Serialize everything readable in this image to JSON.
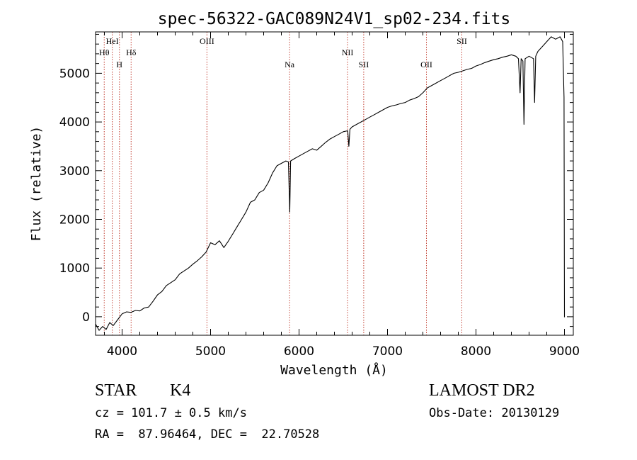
{
  "title": "spec-56322-GAC089N24V1_sp02-234.fits",
  "chart_data": {
    "type": "line",
    "title": "spec-56322-GAC089N24V1_sp02-234.fits",
    "xlabel": "Wavelength (Å)",
    "ylabel": "Flux (relative)",
    "xlim": [
      3700,
      9100
    ],
    "ylim": [
      -380,
      5850
    ],
    "x_ticks": [
      4000,
      5000,
      6000,
      7000,
      8000,
      9000
    ],
    "y_ticks": [
      0,
      1000,
      2000,
      3000,
      4000,
      5000
    ],
    "x_tick_labels": [
      "4000",
      "5000",
      "6000",
      "7000",
      "8000",
      "9000"
    ],
    "y_tick_labels": [
      "0",
      "1000",
      "2000",
      "3000",
      "4000",
      "5000"
    ],
    "grid": false,
    "line_color": "#000000",
    "series": [
      {
        "points": [
          [
            3700,
            -150
          ],
          [
            3740,
            -280
          ],
          [
            3780,
            -200
          ],
          [
            3820,
            -260
          ],
          [
            3860,
            -120
          ],
          [
            3900,
            -180
          ],
          [
            3950,
            -60
          ],
          [
            4000,
            60
          ],
          [
            4050,
            100
          ],
          [
            4100,
            90
          ],
          [
            4150,
            130
          ],
          [
            4200,
            120
          ],
          [
            4250,
            180
          ],
          [
            4300,
            200
          ],
          [
            4350,
            320
          ],
          [
            4400,
            450
          ],
          [
            4450,
            520
          ],
          [
            4500,
            640
          ],
          [
            4550,
            700
          ],
          [
            4600,
            760
          ],
          [
            4650,
            880
          ],
          [
            4700,
            940
          ],
          [
            4750,
            1000
          ],
          [
            4800,
            1080
          ],
          [
            4850,
            1150
          ],
          [
            4900,
            1230
          ],
          [
            4950,
            1330
          ],
          [
            5000,
            1520
          ],
          [
            5050,
            1480
          ],
          [
            5100,
            1560
          ],
          [
            5150,
            1420
          ],
          [
            5200,
            1550
          ],
          [
            5250,
            1700
          ],
          [
            5300,
            1850
          ],
          [
            5350,
            2000
          ],
          [
            5400,
            2150
          ],
          [
            5450,
            2350
          ],
          [
            5500,
            2400
          ],
          [
            5550,
            2550
          ],
          [
            5600,
            2600
          ],
          [
            5650,
            2750
          ],
          [
            5700,
            2950
          ],
          [
            5750,
            3100
          ],
          [
            5800,
            3150
          ],
          [
            5850,
            3200
          ],
          [
            5880,
            3180
          ],
          [
            5895,
            2150
          ],
          [
            5905,
            3200
          ],
          [
            5950,
            3250
          ],
          [
            6000,
            3300
          ],
          [
            6050,
            3350
          ],
          [
            6100,
            3400
          ],
          [
            6150,
            3450
          ],
          [
            6200,
            3420
          ],
          [
            6250,
            3500
          ],
          [
            6300,
            3580
          ],
          [
            6350,
            3650
          ],
          [
            6400,
            3700
          ],
          [
            6450,
            3750
          ],
          [
            6500,
            3800
          ],
          [
            6550,
            3820
          ],
          [
            6563,
            3500
          ],
          [
            6575,
            3850
          ],
          [
            6600,
            3900
          ],
          [
            6650,
            3950
          ],
          [
            6700,
            4000
          ],
          [
            6750,
            4050
          ],
          [
            6800,
            4100
          ],
          [
            6850,
            4150
          ],
          [
            6900,
            4200
          ],
          [
            6950,
            4250
          ],
          [
            7000,
            4300
          ],
          [
            7050,
            4330
          ],
          [
            7100,
            4350
          ],
          [
            7150,
            4380
          ],
          [
            7200,
            4400
          ],
          [
            7250,
            4450
          ],
          [
            7300,
            4480
          ],
          [
            7350,
            4520
          ],
          [
            7400,
            4600
          ],
          [
            7450,
            4700
          ],
          [
            7500,
            4750
          ],
          [
            7550,
            4800
          ],
          [
            7600,
            4850
          ],
          [
            7650,
            4900
          ],
          [
            7700,
            4950
          ],
          [
            7750,
            5000
          ],
          [
            7800,
            5020
          ],
          [
            7850,
            5050
          ],
          [
            7900,
            5080
          ],
          [
            7950,
            5100
          ],
          [
            8000,
            5150
          ],
          [
            8050,
            5180
          ],
          [
            8100,
            5220
          ],
          [
            8150,
            5250
          ],
          [
            8200,
            5280
          ],
          [
            8250,
            5300
          ],
          [
            8300,
            5330
          ],
          [
            8350,
            5350
          ],
          [
            8400,
            5380
          ],
          [
            8450,
            5350
          ],
          [
            8480,
            5300
          ],
          [
            8498,
            4600
          ],
          [
            8510,
            5300
          ],
          [
            8530,
            5250
          ],
          [
            8542,
            3950
          ],
          [
            8555,
            5300
          ],
          [
            8600,
            5350
          ],
          [
            8650,
            5300
          ],
          [
            8662,
            4400
          ],
          [
            8675,
            5350
          ],
          [
            8700,
            5450
          ],
          [
            8750,
            5550
          ],
          [
            8800,
            5650
          ],
          [
            8850,
            5750
          ],
          [
            8900,
            5700
          ],
          [
            8950,
            5750
          ],
          [
            8980,
            5650
          ],
          [
            8995,
            4500
          ],
          [
            9000,
            -10
          ]
        ]
      }
    ],
    "spectral_lines": [
      {
        "label": "Hθ",
        "x": 3798,
        "row": 2
      },
      {
        "label": "HeI",
        "x": 3889,
        "row": 1
      },
      {
        "label": "H",
        "x": 3970,
        "row": 3
      },
      {
        "label": "Hδ",
        "x": 4102,
        "row": 2
      },
      {
        "label": "OIII",
        "x": 4959,
        "row": 1
      },
      {
        "label": "Na",
        "x": 5893,
        "row": 3
      },
      {
        "label": "NII",
        "x": 6548,
        "row": 2
      },
      {
        "label": "SII",
        "x": 6731,
        "row": 3
      },
      {
        "label": "OII",
        "x": 7440,
        "row": 3
      },
      {
        "label": "SII",
        "x": 7840,
        "row": 1
      }
    ],
    "line_marker_color": "#c0392b"
  },
  "info": {
    "class_label": "STAR",
    "subclass_label": "K4",
    "survey": "LAMOST DR2",
    "cz": "cz = 101.7 ± 0.5 km/s",
    "obs_date": "Obs-Date: 20130129",
    "coords": "RA =  87.96464, DEC =  22.70528"
  }
}
